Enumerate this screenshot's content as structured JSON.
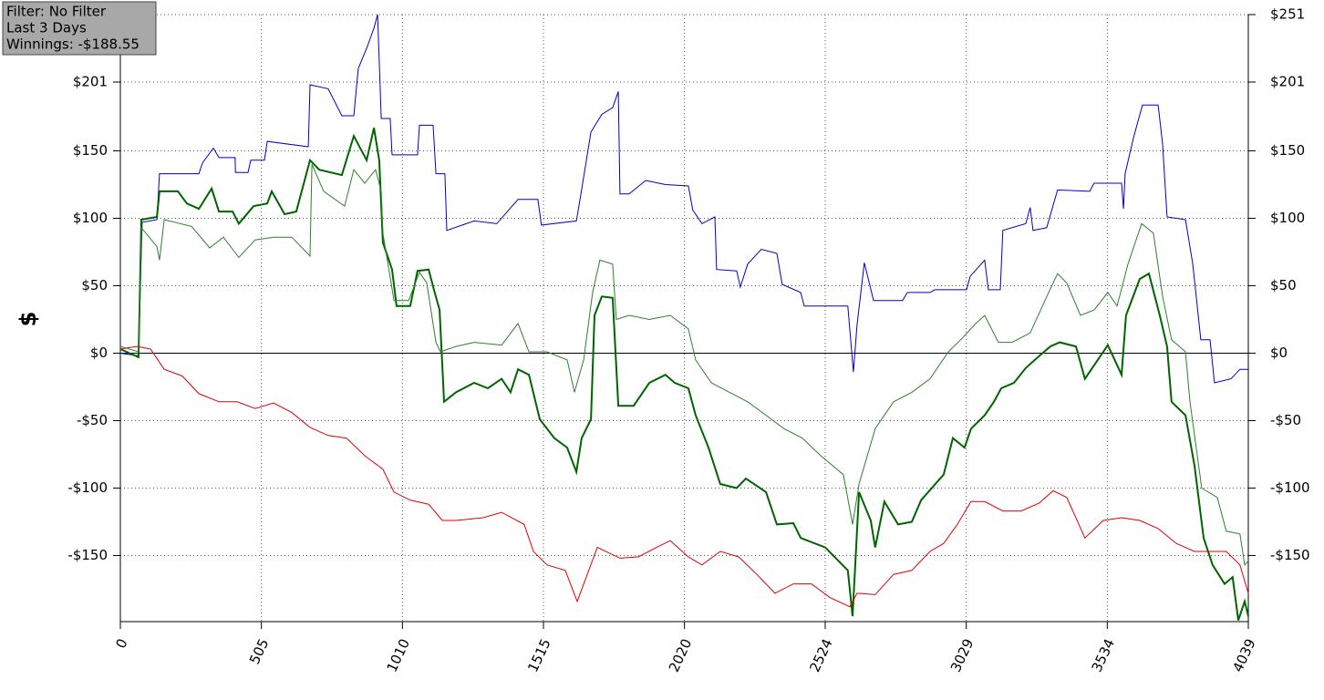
{
  "chart_data": {
    "type": "line",
    "ylabel": "$",
    "info_box": [
      "Filter: No Filter",
      "Last 3 Days",
      "Winnings: -$188.55"
    ],
    "xlim": [
      0,
      4039
    ],
    "xticks": [
      0,
      505,
      1010,
      1515,
      2020,
      2524,
      3029,
      3534,
      4039
    ],
    "ylim": [
      -199,
      251
    ],
    "yticks": [
      {
        "value": 251,
        "label": "$251"
      },
      {
        "value": 201,
        "label": "$201"
      },
      {
        "value": 150,
        "label": "$150"
      },
      {
        "value": 100,
        "label": "$100"
      },
      {
        "value": 50,
        "label": "$50"
      },
      {
        "value": 0,
        "label": "$0"
      },
      {
        "value": -50,
        "label": "-$50"
      },
      {
        "value": -100,
        "label": "-$100"
      },
      {
        "value": -150,
        "label": "-$150"
      }
    ],
    "grid": true,
    "zero_line": true,
    "series": [
      {
        "color": "#0000c8",
        "line_width": 1,
        "x": [
          0,
          65,
          78,
          131,
          140,
          281,
          294,
          333,
          353,
          411,
          412,
          457,
          467,
          516,
          526,
          673,
          679,
          744,
          793,
          836,
          852,
          882,
          908,
          921,
          934,
          966,
          973,
          1064,
          1071,
          1120,
          1130,
          1162,
          1169,
          1267,
          1348,
          1424,
          1495,
          1508,
          1633,
          1646,
          1685,
          1724,
          1763,
          1783,
          1789,
          1822,
          1881,
          1952,
          2034,
          2050,
          2083,
          2129,
          2135,
          2207,
          2220,
          2246,
          2295,
          2351,
          2370,
          2436,
          2449,
          2605,
          2625,
          2638,
          2664,
          2697,
          2801,
          2818,
          2899,
          2916,
          3030,
          3043,
          3095,
          3108,
          3151,
          3160,
          3242,
          3258,
          3268,
          3317,
          3356,
          3471,
          3487,
          3585,
          3592,
          3598,
          3627,
          3660,
          3716,
          3732,
          3748,
          3814,
          3840,
          3869,
          3902,
          3918,
          3977,
          4009,
          4039
        ],
        "values": [
          0,
          -2,
          97,
          99,
          133,
          133,
          141,
          152,
          145,
          145,
          134,
          134,
          143,
          143,
          157,
          153,
          199,
          196,
          176,
          176,
          211,
          226,
          241,
          251,
          174,
          174,
          147,
          147,
          169,
          169,
          133,
          133,
          91,
          98,
          96,
          114,
          114,
          95,
          98,
          114,
          164,
          177,
          182,
          194,
          118,
          118,
          128,
          125,
          124,
          106,
          96,
          101,
          62,
          61,
          49,
          66,
          77,
          74,
          51,
          45,
          35,
          35,
          -14,
          21,
          67,
          39,
          39,
          45,
          45,
          47,
          47,
          57,
          69,
          47,
          47,
          91,
          96,
          108,
          91,
          93,
          121,
          120,
          126,
          126,
          107,
          133,
          159,
          184,
          184,
          155,
          101,
          99,
          66,
          10,
          10,
          -22,
          -19,
          -12,
          -12
        ]
      },
      {
        "color": "#006400",
        "line_width": 2,
        "x": [
          0,
          65,
          75,
          131,
          140,
          206,
          238,
          281,
          327,
          353,
          402,
          424,
          477,
          526,
          542,
          588,
          630,
          679,
          712,
          793,
          836,
          882,
          908,
          927,
          940,
          973,
          989,
          1038,
          1064,
          1104,
          1123,
          1143,
          1159,
          1202,
          1267,
          1316,
          1365,
          1397,
          1424,
          1463,
          1502,
          1554,
          1600,
          1633,
          1652,
          1685,
          1698,
          1724,
          1763,
          1783,
          1838,
          1894,
          1952,
          1985,
          2034,
          2060,
          2106,
          2148,
          2207,
          2240,
          2312,
          2351,
          2410,
          2436,
          2524,
          2605,
          2622,
          2645,
          2687,
          2703,
          2736,
          2785,
          2834,
          2867,
          2948,
          2981,
          3023,
          3046,
          3095,
          3128,
          3154,
          3200,
          3242,
          3291,
          3330,
          3363,
          3422,
          3454,
          3487,
          3536,
          3585,
          3601,
          3650,
          3683,
          3722,
          3748,
          3764,
          3814,
          3846,
          3879,
          3911,
          3954,
          3983,
          4003,
          4026,
          4039
        ],
        "values": [
          3,
          -3,
          99,
          101,
          120,
          120,
          111,
          107,
          122,
          105,
          105,
          96,
          109,
          111,
          120,
          103,
          105,
          143,
          136,
          132,
          161,
          143,
          167,
          143,
          82,
          62,
          35,
          35,
          61,
          62,
          47,
          32,
          -36,
          -29,
          -22,
          -26,
          -19,
          -29,
          -12,
          -16,
          -49,
          -63,
          -70,
          -88,
          -63,
          -49,
          28,
          42,
          41,
          -39,
          -39,
          -22,
          -16,
          -22,
          -26,
          -46,
          -70,
          -97,
          -100,
          -93,
          -103,
          -127,
          -126,
          -137,
          -144,
          -161,
          -195,
          -103,
          -124,
          -144,
          -110,
          -127,
          -125,
          -109,
          -90,
          -63,
          -70,
          -56,
          -46,
          -36,
          -26,
          -22,
          -11,
          -2,
          5,
          8,
          5,
          -19,
          -9,
          6,
          -16,
          28,
          55,
          59,
          28,
          5,
          -36,
          -46,
          -83,
          -137,
          -157,
          -171,
          -166,
          -198,
          -184,
          -195
        ]
      },
      {
        "color": "#2f7f2f",
        "line_width": 1,
        "x": [
          0,
          65,
          75,
          131,
          140,
          157,
          255,
          320,
          369,
          424,
          483,
          549,
          614,
          679,
          686,
          728,
          803,
          836,
          875,
          914,
          934,
          940,
          980,
          1032,
          1071,
          1097,
          1130,
          1146,
          1202,
          1267,
          1365,
          1424,
          1463,
          1528,
          1600,
          1626,
          1659,
          1691,
          1717,
          1763,
          1776,
          1822,
          1894,
          1969,
          2034,
          2060,
          2116,
          2181,
          2246,
          2312,
          2377,
          2442,
          2508,
          2589,
          2622,
          2645,
          2703,
          2769,
          2834,
          2899,
          2965,
          3014,
          3063,
          3095,
          3144,
          3193,
          3258,
          3324,
          3356,
          3389,
          3438,
          3487,
          3536,
          3569,
          3608,
          3657,
          3699,
          3732,
          3764,
          3814,
          3830,
          3872,
          3928,
          3960,
          4009,
          4026,
          4039
        ],
        "values": [
          5,
          1,
          93,
          79,
          69,
          99,
          94,
          78,
          86,
          71,
          84,
          86,
          86,
          72,
          140,
          120,
          109,
          136,
          126,
          136,
          120,
          89,
          39,
          39,
          60,
          52,
          8,
          1,
          5,
          8,
          6,
          22,
          1,
          1,
          -5,
          -29,
          -5,
          45,
          69,
          66,
          25,
          28,
          25,
          28,
          18,
          -5,
          -22,
          -29,
          -36,
          -46,
          -56,
          -63,
          -76,
          -90,
          -127,
          -97,
          -56,
          -36,
          -29,
          -19,
          1,
          11,
          22,
          28,
          8,
          8,
          15,
          45,
          59,
          52,
          28,
          32,
          45,
          35,
          66,
          96,
          89,
          42,
          10,
          1,
          -36,
          -100,
          -107,
          -132,
          -134,
          -157,
          -154
        ]
      },
      {
        "color": "#e00000",
        "line_width": 1,
        "x": [
          0,
          59,
          108,
          157,
          222,
          281,
          353,
          418,
          483,
          549,
          614,
          679,
          744,
          810,
          875,
          940,
          980,
          1038,
          1104,
          1153,
          1202,
          1299,
          1365,
          1446,
          1479,
          1528,
          1593,
          1636,
          1708,
          1789,
          1855,
          1920,
          1969,
          2034,
          2083,
          2148,
          2214,
          2279,
          2344,
          2410,
          2475,
          2540,
          2612,
          2638,
          2703,
          2769,
          2834,
          2899,
          2948,
          2997,
          3046,
          3095,
          3160,
          3226,
          3291,
          3340,
          3389,
          3454,
          3520,
          3585,
          3650,
          3716,
          3781,
          3846,
          3911,
          3960,
          4009,
          4039
        ],
        "values": [
          3,
          5,
          3,
          -12,
          -17,
          -30,
          -36,
          -36,
          -41,
          -37,
          -44,
          -55,
          -61,
          -63,
          -76,
          -86,
          -103,
          -109,
          -112,
          -124,
          -124,
          -122,
          -118,
          -127,
          -147,
          -157,
          -161,
          -184,
          -144,
          -152,
          -151,
          -144,
          -139,
          -151,
          -157,
          -147,
          -151,
          -164,
          -178,
          -171,
          -171,
          -181,
          -188,
          -178,
          -179,
          -164,
          -161,
          -147,
          -141,
          -127,
          -110,
          -110,
          -117,
          -117,
          -111,
          -102,
          -107,
          -137,
          -124,
          -122,
          -124,
          -130,
          -141,
          -147,
          -147,
          -147,
          -157,
          -178
        ]
      }
    ]
  }
}
